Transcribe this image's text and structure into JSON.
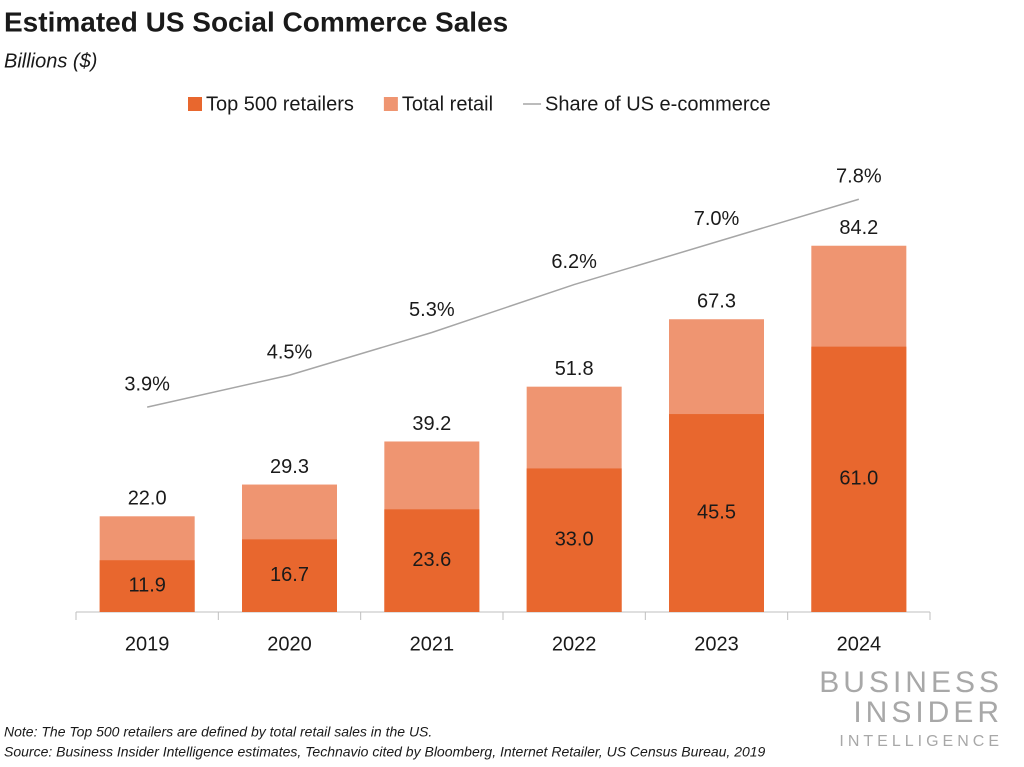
{
  "chart_data": {
    "type": "bar",
    "title": "Estimated US Social Commerce Sales",
    "subtitle": "Billions ($)",
    "categories": [
      "2019",
      "2020",
      "2021",
      "2022",
      "2023",
      "2024"
    ],
    "series": [
      {
        "name": "Top 500 retailers",
        "color": "#e8672e",
        "values": [
          11.9,
          16.7,
          23.6,
          33,
          45.5,
          61
        ],
        "value_labels": [
          "11.9",
          "16.7",
          "23.6",
          "33.0",
          "45.5",
          "61.0"
        ]
      },
      {
        "name": "Total retail",
        "color": "#ef9571",
        "values": [
          22,
          29.3,
          39.2,
          51.8,
          67.3,
          84.2
        ],
        "value_labels": [
          "22.0",
          "29.3",
          "39.2",
          "51.8",
          "67.3",
          "84.2"
        ]
      },
      {
        "name": "Share of US e-commerce",
        "color": "#a6a6a6",
        "axis": "y2",
        "values": [
          3.9,
          4.5,
          5.3,
          6.2,
          7,
          7.8
        ],
        "value_labels": [
          "3.9%",
          "4.5%",
          "5.3%",
          "6.2%",
          "7.0%",
          "7.8%"
        ]
      }
    ],
    "legend": "top",
    "notes": [
      "Note: The Top 500 retailers are defined by total retail sales in the US.",
      "Source: Business Insider Intelligence estimates, Technavio cited by Bloomberg, Internet Retailer, US Census Bureau, 2019"
    ],
    "logo": [
      "BUSINESS",
      "INSIDER",
      "INTELLIGENCE"
    ]
  }
}
